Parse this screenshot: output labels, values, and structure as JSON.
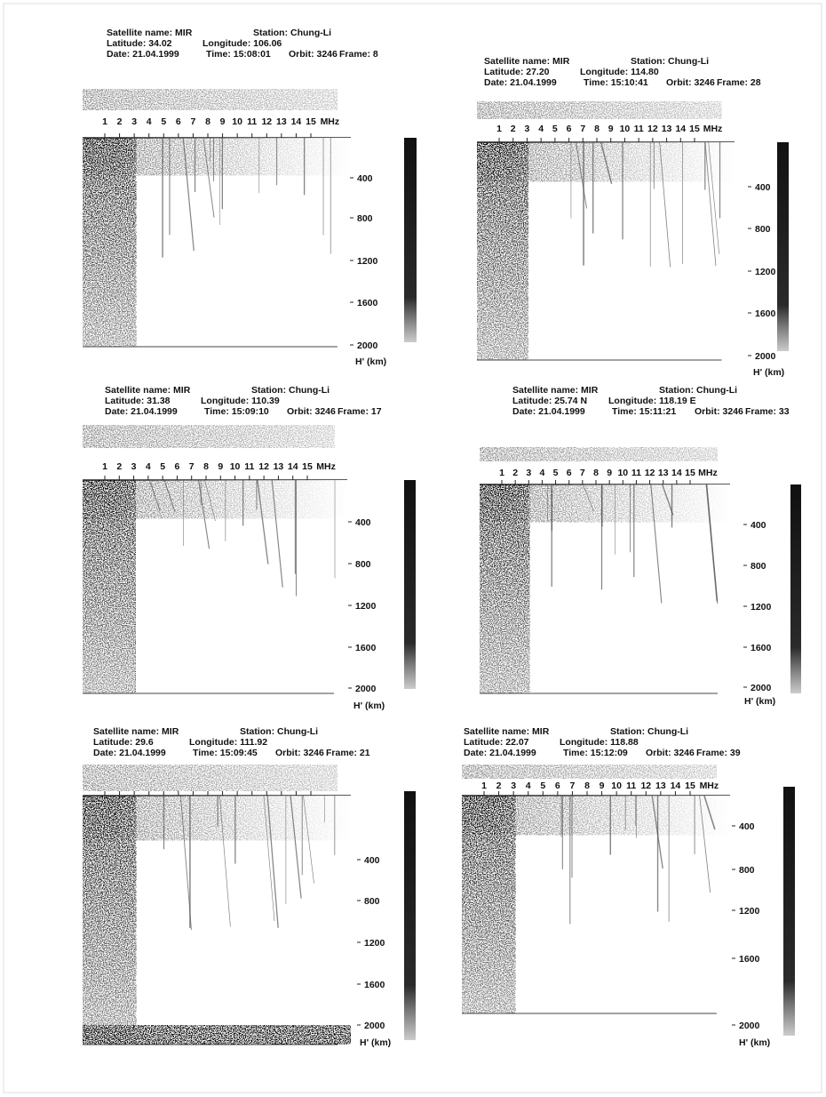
{
  "frequency_labels": [
    "1",
    "2",
    "3",
    "4",
    "5",
    "6",
    "7",
    "8",
    "9",
    "10",
    "11",
    "12",
    "13",
    "14",
    "15"
  ],
  "frequency_unit": "MHz",
  "height_labels": [
    "400",
    "800",
    "1200",
    "1600",
    "2000"
  ],
  "height_unit": "H' (km)",
  "panels": [
    {
      "satellite": "Satellite name: MIR",
      "station": "Station: Chung-Li",
      "latitude": "Latitude: 34.02",
      "longitude": "Longitude: 106.06",
      "date": "Date: 21.04.1999",
      "time": "Time: 15:08:01",
      "orbit": "Orbit: 3246",
      "frame": "Frame: 8"
    },
    {
      "satellite": "Satellite name: MIR",
      "station": "Station: Chung-Li",
      "latitude": "Latitude: 27.20",
      "longitude": "Longitude: 114.80",
      "date": "Date: 21.04.1999",
      "time": "Time: 15:10:41",
      "orbit": "Orbit: 3246",
      "frame": "Frame: 28"
    },
    {
      "satellite": "Satellite name: MIR",
      "station": "Station: Chung-Li",
      "latitude": "Latitude: 31.38",
      "longitude": "Longitude: 110.39",
      "date": "Date: 21.04.1999",
      "time": "Time: 15:09:10",
      "orbit": "Orbit: 3246",
      "frame": "Frame: 17"
    },
    {
      "satellite": "Satellite name: MIR",
      "station": "Station: Chung-Li",
      "latitude": "Latitude: 25.74 N",
      "longitude": "Longitude: 118.19 E",
      "date": "Date: 21.04.1999",
      "time": "Time: 15:11:21",
      "orbit": "Orbit: 3246",
      "frame": "Frame: 33"
    },
    {
      "satellite": "Satellite name: MIR",
      "station": "Station: Chung-Li",
      "latitude": "Latitude: 29.6",
      "longitude": "Longitude: 111.92",
      "date": "Date: 21.04.1999",
      "time": "Time: 15:09:45",
      "orbit": "Orbit: 3246",
      "frame": "Frame: 21"
    },
    {
      "satellite": "Satellite name: MIR",
      "station": "Station: Chung-Li",
      "latitude": "Latitude: 22.07",
      "longitude": "Longitude: 118.88",
      "date": "Date: 21.04.1999",
      "time": "Time: 15:12:09",
      "orbit": "Orbit: 3246",
      "frame": "Frame: 39"
    }
  ]
}
